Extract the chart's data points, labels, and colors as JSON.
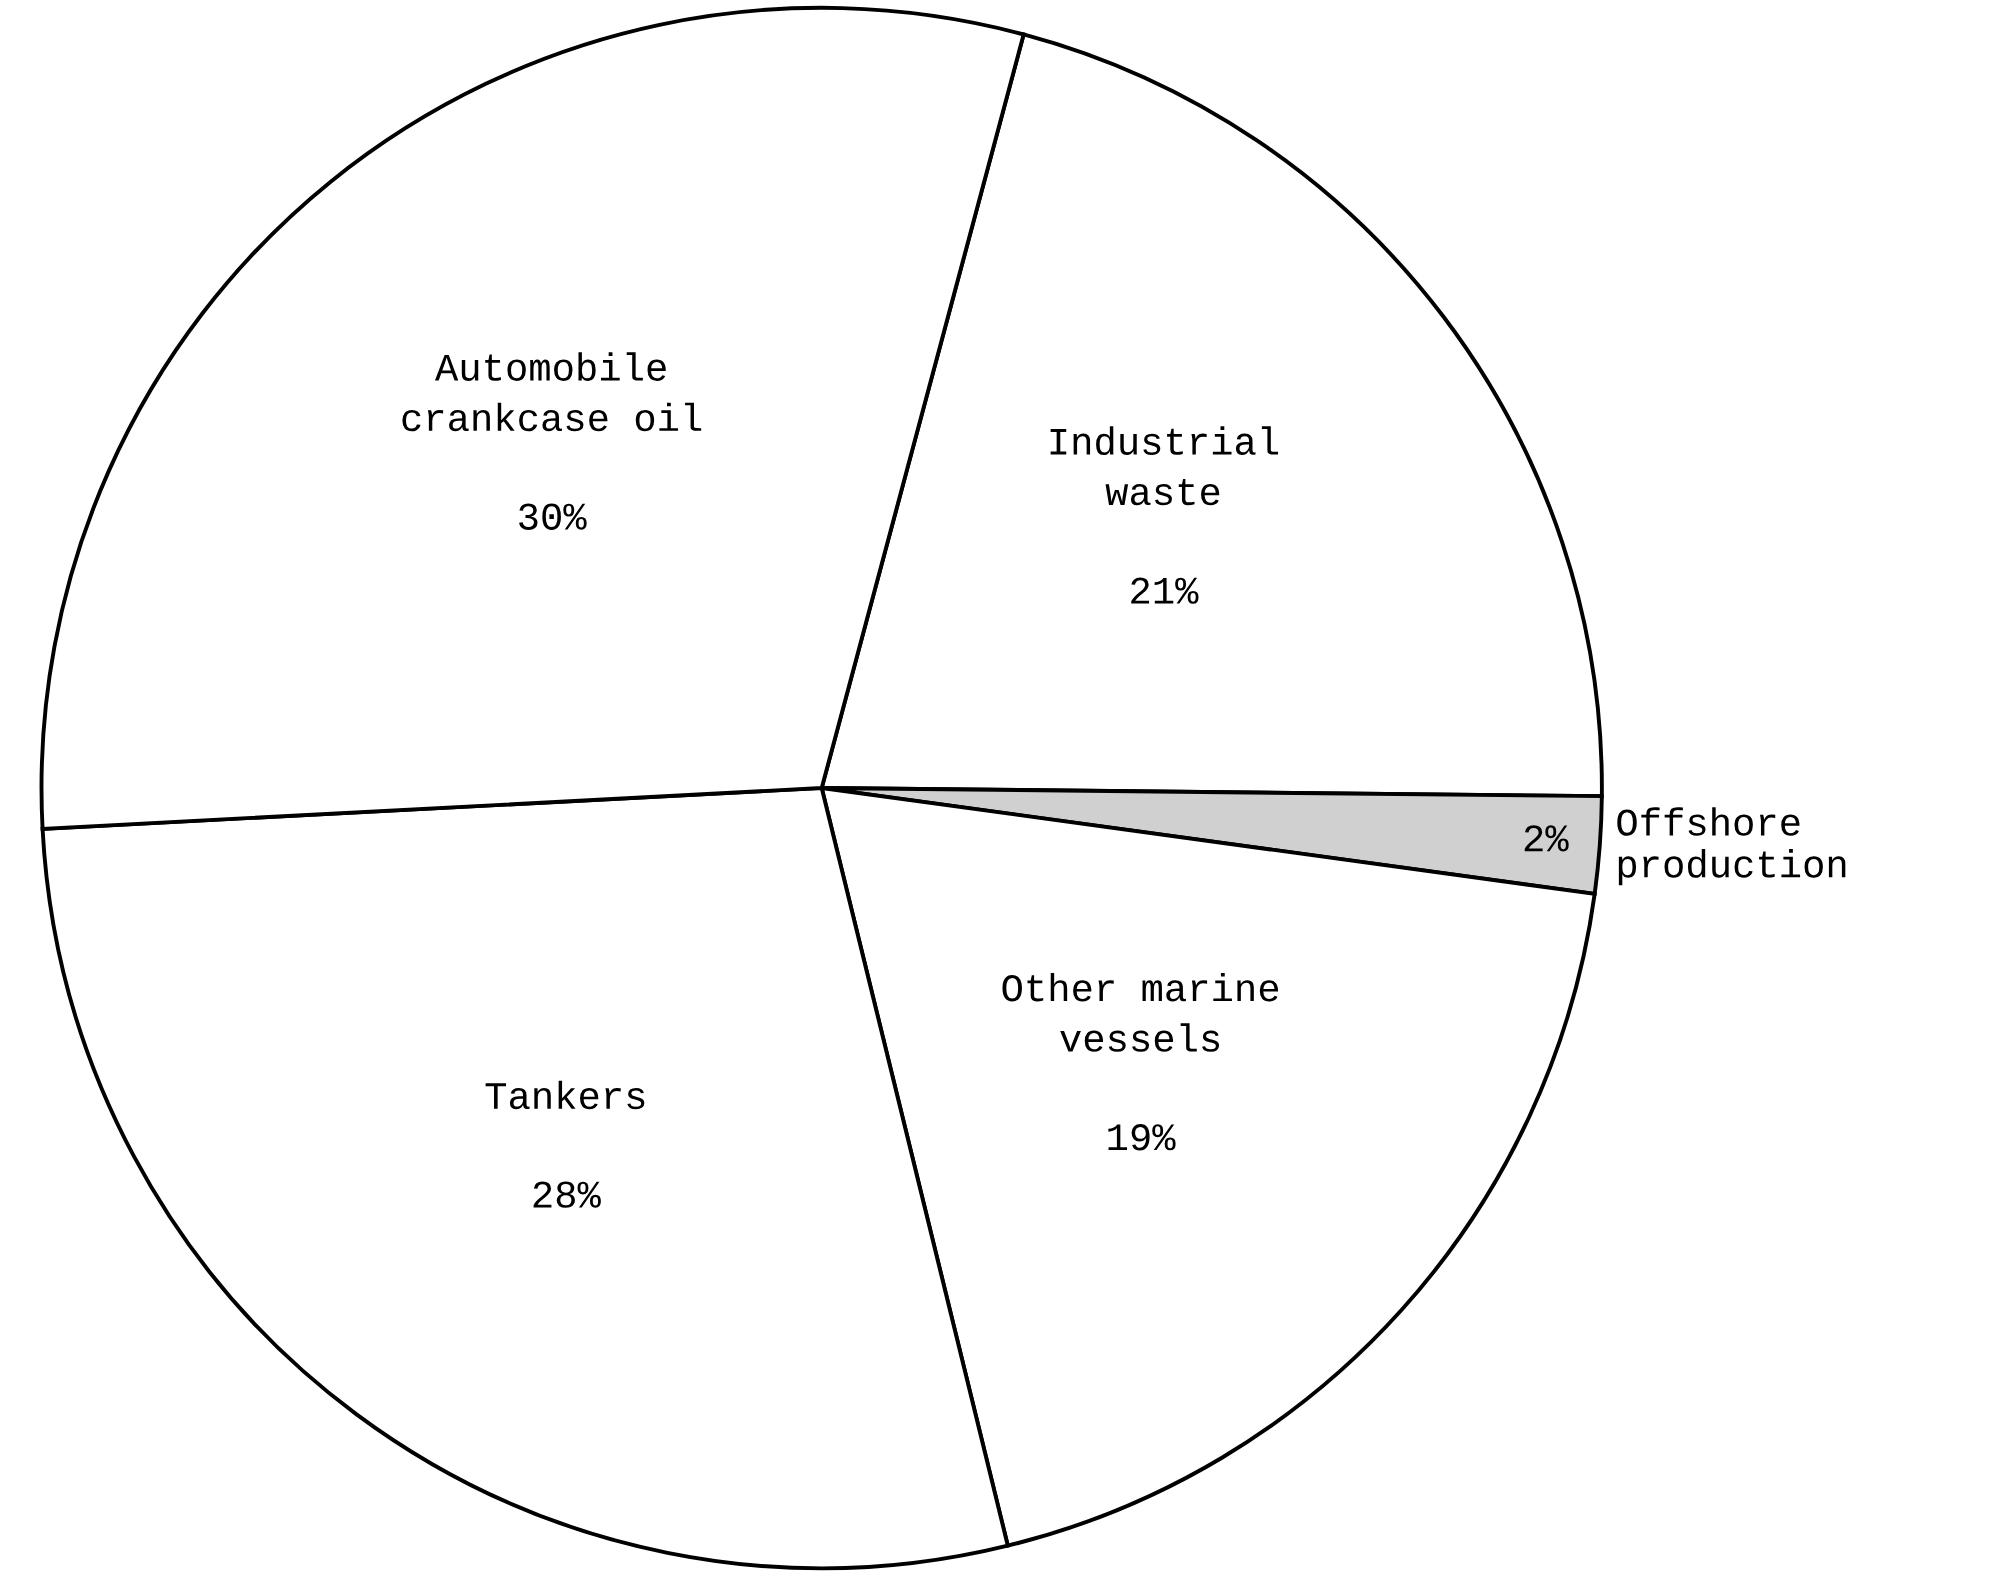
{
  "chart_data": {
    "type": "pie",
    "categories": [
      "Industrial\nwaste",
      "Offshore\nproduction",
      "Other marine\nvessels",
      "Tankers",
      "Automobile\ncrankcase oil"
    ],
    "values": [
      21,
      2,
      19,
      28,
      30
    ],
    "value_labels": [
      "21%",
      "2%",
      "19%",
      "28%",
      "30%"
    ],
    "colors": [
      "#ffffff",
      "#d0d0d0",
      "#ffffff",
      "#ffffff",
      "#ffffff"
    ],
    "legend": false
  }
}
